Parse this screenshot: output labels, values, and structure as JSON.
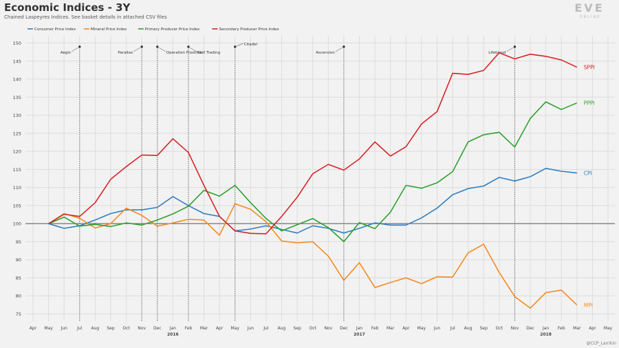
{
  "title": "Economic Indices - 3Y",
  "subtitle": "Chained Laspeyres Indices. See basket details in attached CSV files",
  "logo": {
    "top": "EVE",
    "bottom": "ONLINE"
  },
  "credit": "@CCP_Larrikin",
  "chart_data": {
    "type": "line",
    "title": "Economic Indices - 3Y",
    "ylim": [
      73,
      152
    ],
    "yticks": [
      75,
      80,
      85,
      90,
      95,
      100,
      105,
      110,
      115,
      120,
      125,
      130,
      135,
      140,
      145,
      150
    ],
    "grid": true,
    "legend": "top-left",
    "baseline": 100,
    "x_labels": [
      "Apr",
      "May",
      "Jun",
      "Jul",
      "Aug",
      "Sep",
      "Oct",
      "Nov",
      "Dec",
      "Jan",
      "Feb",
      "Mar",
      "Apr",
      "May",
      "Jun",
      "Jul",
      "Aug",
      "Sep",
      "Oct",
      "Nov",
      "Dec",
      "Jan",
      "Feb",
      "Mar",
      "Apr",
      "May",
      "Jun",
      "Jul",
      "Aug",
      "Sep",
      "Oct",
      "Nov",
      "Dec",
      "Jan",
      "Feb",
      "Mar",
      "Apr",
      "May"
    ],
    "year_labels": [
      {
        "index": 9,
        "label": "2016"
      },
      {
        "index": 21,
        "label": "2017"
      },
      {
        "index": 33,
        "label": "2018"
      }
    ],
    "annotations": [
      {
        "x": 3,
        "label": "Aegis",
        "side": "left"
      },
      {
        "x": 7,
        "label": "Parallax",
        "side": "left"
      },
      {
        "x": 8,
        "label": "Operation Frostline",
        "side": "right"
      },
      {
        "x": 10,
        "label": "Skill Trading",
        "side": "right"
      },
      {
        "x": 13,
        "label": "Citadel",
        "side": "right"
      },
      {
        "x": 20,
        "label": "Ascension",
        "side": "left"
      },
      {
        "x": 31,
        "label": "Lifeblood",
        "side": "left"
      }
    ],
    "series": [
      {
        "name": "Consumer Price Index",
        "short": "CPI",
        "color": "#2f7fc1",
        "values": [
          null,
          100,
          98.7,
          99.4,
          101,
          102.8,
          103.8,
          103.8,
          104.5,
          107.5,
          105,
          102.8,
          102,
          98,
          98.5,
          99.4,
          98.4,
          97.4,
          99.4,
          98.7,
          97.4,
          98.7,
          100.2,
          99.6,
          99.6,
          101.6,
          104.3,
          108,
          109.7,
          110.4,
          112.8,
          111.8,
          113,
          115.3,
          114.5,
          114,
          null,
          null
        ]
      },
      {
        "name": "Mineral Price Index",
        "short": "MPI",
        "color": "#f28a24",
        "values": [
          null,
          100,
          102.8,
          101.5,
          98.8,
          100,
          104.3,
          102.3,
          99.3,
          100.2,
          101.2,
          101,
          96.8,
          105.5,
          104,
          100.5,
          95.2,
          94.7,
          95,
          91,
          84.3,
          89.2,
          82.3,
          83.7,
          85,
          83.4,
          85.3,
          85.2,
          91.9,
          94.3,
          86.5,
          79.8,
          76.6,
          80.9,
          81.6,
          77.5,
          null,
          null
        ]
      },
      {
        "name": "Primary Producer Price Index",
        "short": "PPPI",
        "color": "#2ea02e",
        "values": [
          null,
          100,
          101.8,
          99.3,
          99.8,
          99.2,
          100.2,
          99.6,
          101,
          102.7,
          104.8,
          109.2,
          107.6,
          110.6,
          105.8,
          101.4,
          98,
          99.7,
          101.4,
          98.9,
          95,
          100.3,
          98.6,
          103.2,
          110.6,
          109.8,
          111.3,
          114.4,
          122.6,
          124.6,
          125.3,
          121.2,
          129.1,
          133.7,
          131.6,
          133.4,
          null,
          null
        ]
      },
      {
        "name": "Secondary Producer Price Index",
        "short": "SPPI",
        "color": "#d62426",
        "values": [
          null,
          100,
          102.6,
          102,
          105.8,
          112.3,
          115.8,
          119,
          118.9,
          123.5,
          119.7,
          110.6,
          102,
          98,
          97.3,
          97.2,
          102,
          107.3,
          113.8,
          116.4,
          114.8,
          117.9,
          122.6,
          118.7,
          121.3,
          127.6,
          131,
          141.6,
          141.3,
          142.4,
          147.3,
          145.6,
          146.9,
          146.3,
          145.3,
          143.3,
          null,
          null
        ]
      }
    ]
  }
}
